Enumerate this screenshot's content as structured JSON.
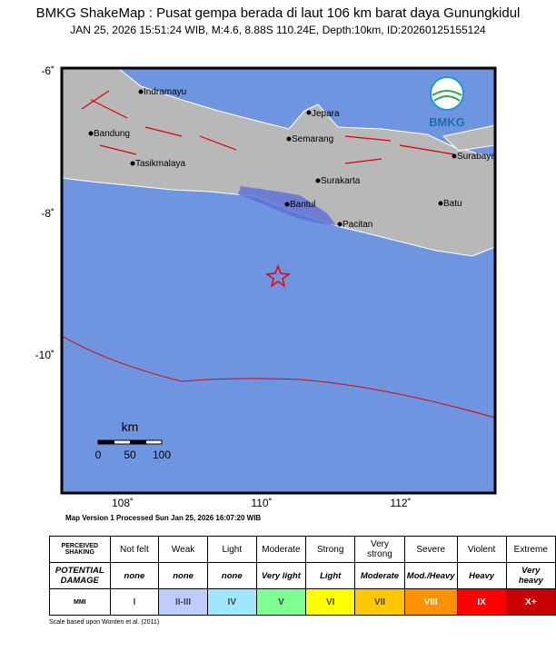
{
  "header": {
    "title": "BMKG ShakeMap : Pusat gempa berada di laut 106 km barat daya Gunungkidul",
    "subtitle": "JAN 25, 2026 15:51:24 WIB, M:4.6, 8.88S 110.24E, Depth:10km, ID:20260125155124"
  },
  "map": {
    "lat_labels": [
      "-6˚",
      "-8˚",
      "-10˚"
    ],
    "lon_labels": [
      "108˚",
      "110˚",
      "112˚"
    ],
    "cities": [
      "Indramayu",
      "Bandung",
      "Tasikmalaya",
      "Jepara",
      "Semarang",
      "Surakarta",
      "Bantul",
      "Pacitan",
      "Batu",
      "Surabaya"
    ],
    "logo": "BMKG",
    "scale": {
      "unit": "km",
      "labels": [
        "0",
        "50",
        "100"
      ]
    }
  },
  "footer": "Map Version 1 Processed Sun Jan 25, 2026 16:07:20 WIB",
  "table": {
    "rows": [
      [
        "PERCEIVED SHAKING",
        "Not felt",
        "Weak",
        "Light",
        "Moderate",
        "Strong",
        "Very strong",
        "Severe",
        "Violent",
        "Extreme"
      ],
      [
        "POTENTIAL DAMAGE",
        "none",
        "none",
        "none",
        "Very light",
        "Light",
        "Moderate",
        "Mod./Heavy",
        "Heavy",
        "Very heavy"
      ],
      [
        "MMI",
        "I",
        "II-III",
        "IV",
        "V",
        "VI",
        "VII",
        "VIII",
        "IX",
        "X+"
      ]
    ]
  },
  "note": "Scale based upon Worden et al. (2011)"
}
